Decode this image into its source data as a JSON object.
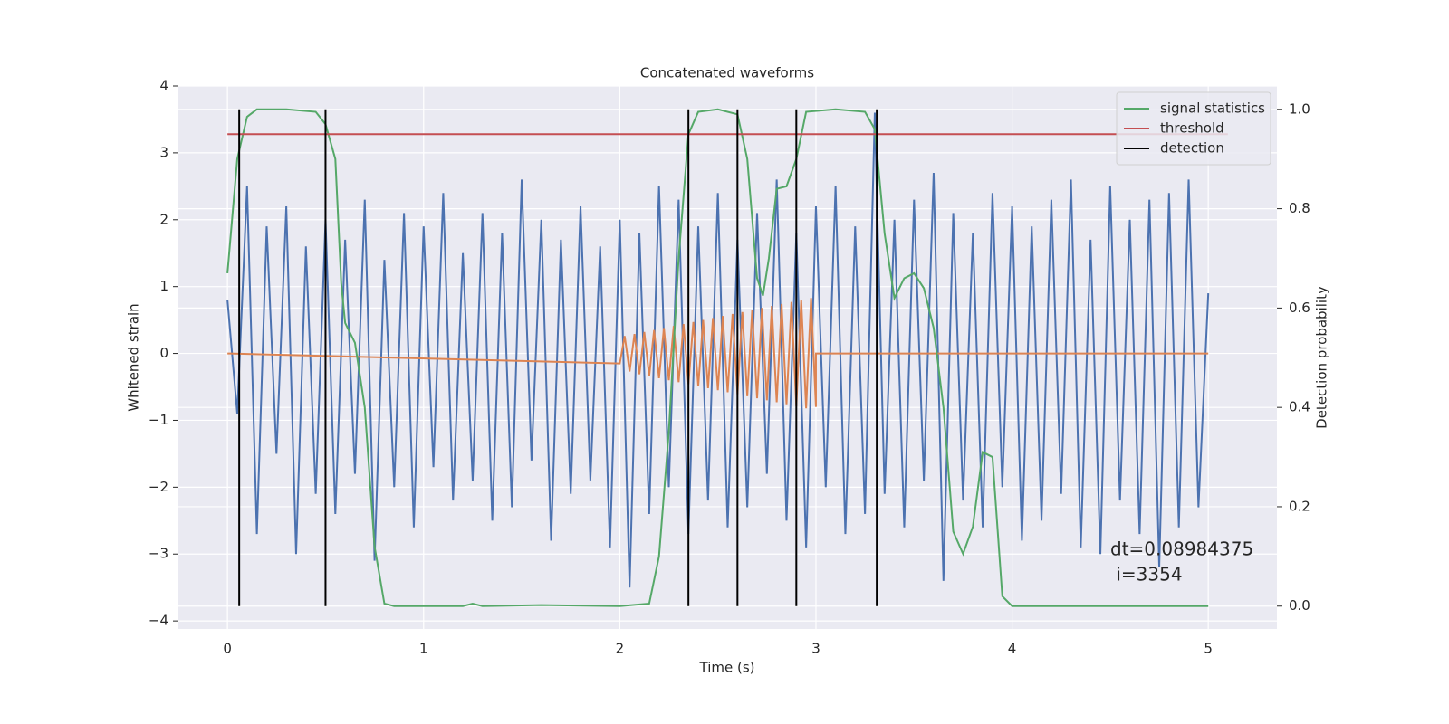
{
  "chart_data": {
    "type": "line",
    "title": "Concatenated waveforms",
    "xlabel": "Time (s)",
    "ylabel": "Whitened strain",
    "y2label": "Detection probability",
    "xlim": [
      -0.25,
      5.35
    ],
    "ylim": [
      -4.12,
      4
    ],
    "y2lim": [
      -0.046,
      1.047
    ],
    "xticks": [
      0,
      1,
      2,
      3,
      4,
      5
    ],
    "yticks": [
      {
        "value": -4,
        "label": "−4"
      },
      {
        "value": -3,
        "label": "−3"
      },
      {
        "value": -2,
        "label": "−2"
      },
      {
        "value": -1,
        "label": "−1"
      },
      0,
      1,
      2,
      3,
      4
    ],
    "y2ticks": [
      {
        "value": 0,
        "label": "0.0"
      },
      0.2,
      0.4,
      0.6,
      0.8,
      {
        "value": 1,
        "label": "1.0"
      }
    ],
    "grid": true,
    "legend": "upper right",
    "annotation": [
      "dt=0.08984375",
      " i=3354"
    ],
    "series": [
      {
        "color": "#4c72b0",
        "x": [
          0,
          0.05,
          0.1,
          0.15,
          0.2,
          0.25,
          0.3,
          0.35,
          0.4,
          0.45,
          0.5,
          0.55,
          0.6,
          0.65,
          0.7,
          0.75,
          0.8,
          0.85,
          0.9,
          0.95,
          1,
          1.05,
          1.1,
          1.15,
          1.2,
          1.25,
          1.3,
          1.35,
          1.4,
          1.45,
          1.5,
          1.55,
          1.6,
          1.65,
          1.7,
          1.75,
          1.8,
          1.85,
          1.9,
          1.95,
          2,
          2.05,
          2.1,
          2.15,
          2.2,
          2.25,
          2.3,
          2.35,
          2.4,
          2.45,
          2.5,
          2.55,
          2.6,
          2.65,
          2.7,
          2.75,
          2.8,
          2.85,
          2.9,
          2.95,
          3,
          3.05,
          3.1,
          3.15,
          3.2,
          3.25,
          3.3,
          3.35,
          3.4,
          3.45,
          3.5,
          3.55,
          3.6,
          3.65,
          3.7,
          3.75,
          3.8,
          3.85,
          3.9,
          3.95,
          4,
          4.05,
          4.1,
          4.15,
          4.2,
          4.25,
          4.3,
          4.35,
          4.4,
          4.45,
          4.5,
          4.55,
          4.6,
          4.65,
          4.7,
          4.75,
          4.8,
          4.85,
          4.9,
          4.95,
          5
        ],
        "values": [
          0.8,
          -0.9,
          2.5,
          -2.7,
          1.9,
          -1.5,
          2.2,
          -3.0,
          1.6,
          -2.1,
          2.0,
          -2.4,
          1.7,
          -1.8,
          2.3,
          -3.1,
          1.4,
          -2.0,
          2.1,
          -2.6,
          1.9,
          -1.7,
          2.4,
          -2.2,
          1.5,
          -1.9,
          2.1,
          -2.5,
          1.8,
          -2.3,
          2.6,
          -1.6,
          2.0,
          -2.8,
          1.7,
          -2.1,
          2.2,
          -1.9,
          1.6,
          -2.9,
          2.0,
          -3.5,
          1.8,
          -2.4,
          2.5,
          -2.0,
          2.3,
          -2.7,
          1.9,
          -2.2,
          2.4,
          -2.6,
          1.7,
          -2.3,
          2.1,
          -1.8,
          2.6,
          -2.5,
          1.8,
          -2.9,
          2.2,
          -2.0,
          2.5,
          -2.7,
          1.9,
          -2.4,
          3.6,
          -2.1,
          2.0,
          -2.6,
          2.3,
          -1.9,
          2.7,
          -3.4,
          2.1,
          -2.2,
          1.8,
          -2.6,
          2.4,
          -2.0,
          2.2,
          -2.8,
          1.9,
          -2.5,
          2.3,
          -2.1,
          2.6,
          -2.9,
          1.7,
          -3.0,
          2.5,
          -2.2,
          2.0,
          -2.7,
          2.3,
          -3.2,
          2.4,
          -2.6,
          2.6,
          -2.3,
          0.9
        ]
      },
      {
        "color": "#dd8452",
        "x": [
          0,
          2,
          2.025,
          2.05,
          2.075,
          2.1,
          2.125,
          2.15,
          2.175,
          2.2,
          2.225,
          2.25,
          2.275,
          2.3,
          2.325,
          2.35,
          2.375,
          2.4,
          2.425,
          2.45,
          2.475,
          2.5,
          2.525,
          2.55,
          2.575,
          2.6,
          2.625,
          2.65,
          2.675,
          2.7,
          2.725,
          2.75,
          2.775,
          2.8,
          2.825,
          2.85,
          2.875,
          2.9,
          2.925,
          2.95,
          2.975,
          3,
          3,
          5
        ],
        "values": [
          0,
          -0.15,
          0.26,
          -0.27,
          0.29,
          -0.31,
          0.32,
          -0.34,
          0.35,
          -0.37,
          0.38,
          -0.4,
          0.41,
          -0.43,
          0.44,
          -0.46,
          0.47,
          -0.49,
          0.5,
          -0.52,
          0.53,
          -0.55,
          0.56,
          -0.58,
          0.59,
          -0.61,
          0.62,
          -0.64,
          0.65,
          -0.67,
          0.68,
          -0.7,
          0.71,
          -0.73,
          0.74,
          -0.76,
          0.77,
          -0.79,
          0.8,
          -0.82,
          0.83,
          -0.8,
          0,
          0
        ]
      },
      {
        "name": "signal statistics",
        "color": "#55a868",
        "axis": "y2",
        "x": [
          0,
          0.05,
          0.1,
          0.15,
          0.3,
          0.45,
          0.5,
          0.55,
          0.58,
          0.6,
          0.65,
          0.7,
          0.75,
          0.8,
          0.85,
          1.2,
          1.25,
          1.3,
          1.6,
          2,
          2.15,
          2.2,
          2.25,
          2.3,
          2.35,
          2.4,
          2.5,
          2.6,
          2.65,
          2.7,
          2.73,
          2.76,
          2.8,
          2.85,
          2.9,
          2.95,
          3.1,
          3.25,
          3.3,
          3.35,
          3.4,
          3.45,
          3.5,
          3.55,
          3.6,
          3.65,
          3.7,
          3.75,
          3.8,
          3.85,
          3.9,
          3.95,
          4,
          5
        ],
        "values": [
          0.67,
          0.9,
          0.985,
          1,
          1,
          0.995,
          0.97,
          0.9,
          0.65,
          0.57,
          0.53,
          0.4,
          0.12,
          0.005,
          0,
          0,
          0.005,
          0,
          0.002,
          0,
          0.005,
          0.1,
          0.35,
          0.7,
          0.95,
          0.995,
          1,
          0.99,
          0.9,
          0.66,
          0.625,
          0.7,
          0.84,
          0.845,
          0.9,
          0.995,
          1,
          0.995,
          0.96,
          0.75,
          0.62,
          0.66,
          0.67,
          0.64,
          0.56,
          0.4,
          0.15,
          0.105,
          0.16,
          0.31,
          0.3,
          0.02,
          0,
          0
        ]
      },
      {
        "name": "threshold",
        "color": "#c44e52",
        "axis": "y2",
        "x": [
          0,
          5.1
        ],
        "values": [
          0.95,
          0.95
        ]
      },
      {
        "name": "detection",
        "color": "#000000",
        "axis": "y2",
        "kind": "vlines",
        "x": [
          0.06,
          0.5,
          2.35,
          2.6,
          2.9,
          3.31
        ],
        "values": [
          [
            0,
            1
          ],
          [
            0,
            1
          ],
          [
            0,
            1
          ],
          [
            0,
            1
          ],
          [
            0,
            1
          ],
          [
            0,
            1
          ]
        ]
      }
    ]
  }
}
